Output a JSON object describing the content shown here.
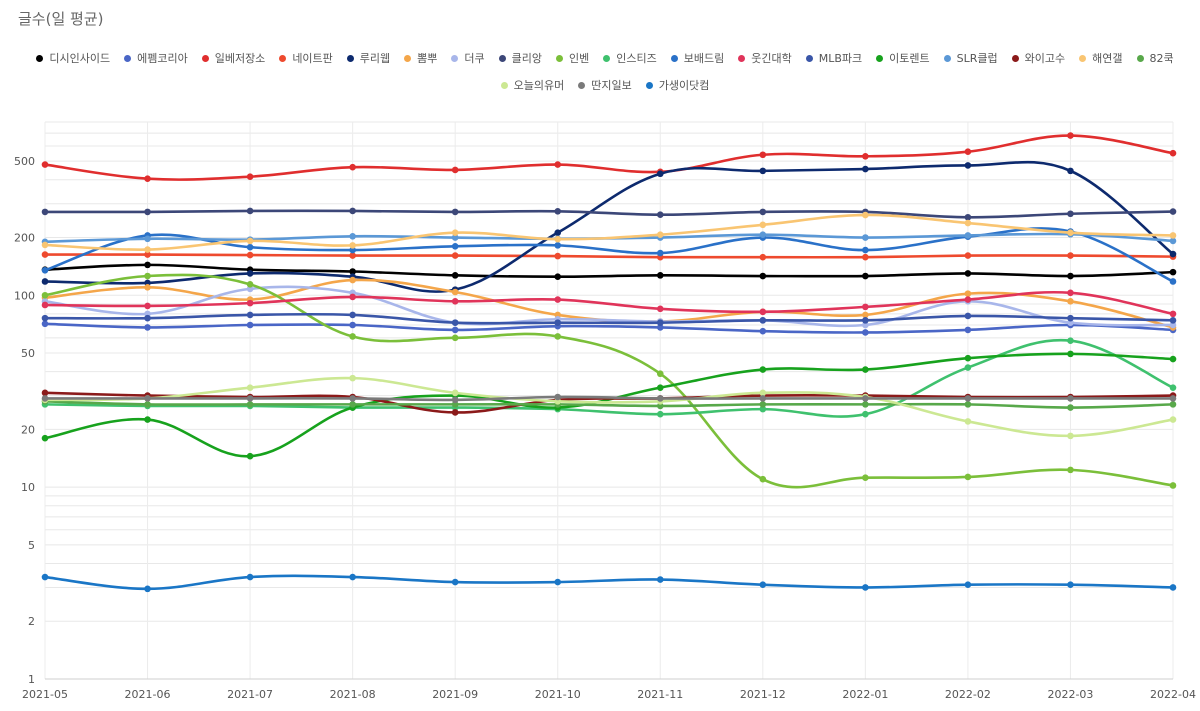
{
  "chart_data": {
    "type": "line",
    "title": "글수(일 평균)",
    "xlabel": "",
    "ylabel": "",
    "y_scale": "log",
    "ylim": [
      1,
      800
    ],
    "y_ticks": [
      1,
      2,
      5,
      10,
      20,
      50,
      100,
      200,
      500
    ],
    "grid": true,
    "legend_position": "top-center",
    "categories": [
      "2021-05",
      "2021-06",
      "2021-07",
      "2021-08",
      "2021-09",
      "2021-10",
      "2021-11",
      "2021-12",
      "2022-01",
      "2022-02",
      "2022-03",
      "2022-04"
    ],
    "series": [
      {
        "name": "디시인사이드",
        "color": "#000000",
        "values": [
          136,
          144,
          136,
          133,
          127,
          125,
          127,
          126,
          126,
          130,
          126,
          132
        ]
      },
      {
        "name": "에펨코리아",
        "color": "#4a66c6",
        "values": [
          71,
          68,
          70,
          70,
          66,
          69,
          68,
          65,
          64,
          66,
          70,
          66
        ]
      },
      {
        "name": "일베저장소",
        "color": "#e02e2e",
        "values": [
          480,
          405,
          415,
          465,
          450,
          480,
          440,
          540,
          530,
          560,
          680,
          550
        ]
      },
      {
        "name": "네이트판",
        "color": "#ee4a2e",
        "values": [
          163,
          163,
          162,
          161,
          161,
          160,
          158,
          158,
          158,
          161,
          161,
          159
        ]
      },
      {
        "name": "루리웹",
        "color": "#0d2a6e",
        "values": [
          118,
          116,
          130,
          125,
          107,
          212,
          430,
          445,
          455,
          475,
          445,
          164
        ]
      },
      {
        "name": "뽐뿌",
        "color": "#f4a64a",
        "values": [
          97,
          110,
          95,
          120,
          104,
          79,
          73,
          82,
          79,
          102,
          93,
          68
        ]
      },
      {
        "name": "더쿠",
        "color": "#a8b6ea",
        "values": [
          93,
          80,
          108,
          103,
          72,
          75,
          73,
          74,
          70,
          93,
          72,
          70
        ]
      },
      {
        "name": "클리앙",
        "color": "#3c4778",
        "values": [
          272,
          272,
          275,
          275,
          272,
          274,
          263,
          272,
          272,
          255,
          266,
          273
        ]
      },
      {
        "name": "인벤",
        "color": "#7bbf3a",
        "values": [
          100,
          126,
          114,
          61,
          60,
          61,
          39,
          11,
          11.2,
          11.3,
          12.3,
          10.2
        ]
      },
      {
        "name": "인스티즈",
        "color": "#3fc16e",
        "values": [
          27,
          26.5,
          26.5,
          26,
          26,
          25.5,
          24,
          25.5,
          24,
          42,
          58,
          33
        ]
      },
      {
        "name": "보배드림",
        "color": "#2a71c8",
        "values": [
          135,
          205,
          178,
          172,
          180,
          182,
          166,
          200,
          172,
          202,
          215,
          118
        ]
      },
      {
        "name": "웃긴대학",
        "color": "#e0345a",
        "values": [
          89,
          88,
          91,
          98,
          93,
          95,
          85,
          82,
          87,
          95,
          103,
          80
        ]
      },
      {
        "name": "MLB파크",
        "color": "#3a56a8",
        "values": [
          76,
          76,
          79,
          79,
          72,
          72,
          72,
          74,
          74,
          78,
          76,
          74
        ]
      },
      {
        "name": "이토렌트",
        "color": "#17a21d",
        "values": [
          18,
          22.5,
          14.5,
          26,
          30,
          26,
          33,
          41,
          41,
          47,
          49.5,
          46.5
        ]
      },
      {
        "name": "SLR클럽",
        "color": "#5b98d6",
        "values": [
          190,
          197,
          195,
          203,
          200,
          197,
          200,
          207,
          200,
          205,
          208,
          192
        ]
      },
      {
        "name": "와이고수",
        "color": "#8b1a1a",
        "values": [
          31,
          30,
          29.5,
          29.5,
          24.5,
          28.5,
          29,
          30,
          30,
          29.5,
          29.5,
          30
        ]
      },
      {
        "name": "해연갤",
        "color": "#f9c572",
        "values": [
          183,
          173,
          192,
          182,
          212,
          196,
          207,
          233,
          262,
          238,
          212,
          205
        ]
      },
      {
        "name": "82쿡",
        "color": "#58a84a",
        "values": [
          28,
          27,
          27,
          27,
          27,
          27,
          26.5,
          27,
          27,
          27,
          26,
          27
        ]
      },
      {
        "name": "오늘의유머",
        "color": "#cce893",
        "values": [
          28.5,
          29,
          33,
          37,
          31,
          28,
          28,
          31,
          29.5,
          22,
          18.5,
          22.5
        ]
      },
      {
        "name": "딴지일보",
        "color": "#7a7a7a",
        "values": [
          29,
          29,
          29,
          29,
          28.5,
          29.5,
          29,
          29,
          29,
          29,
          29,
          29
        ]
      },
      {
        "name": "가생이닷컴",
        "color": "#1a76c6",
        "values": [
          3.4,
          2.95,
          3.4,
          3.4,
          3.2,
          3.2,
          3.3,
          3.1,
          3.0,
          3.1,
          3.1,
          3.0
        ]
      }
    ]
  }
}
